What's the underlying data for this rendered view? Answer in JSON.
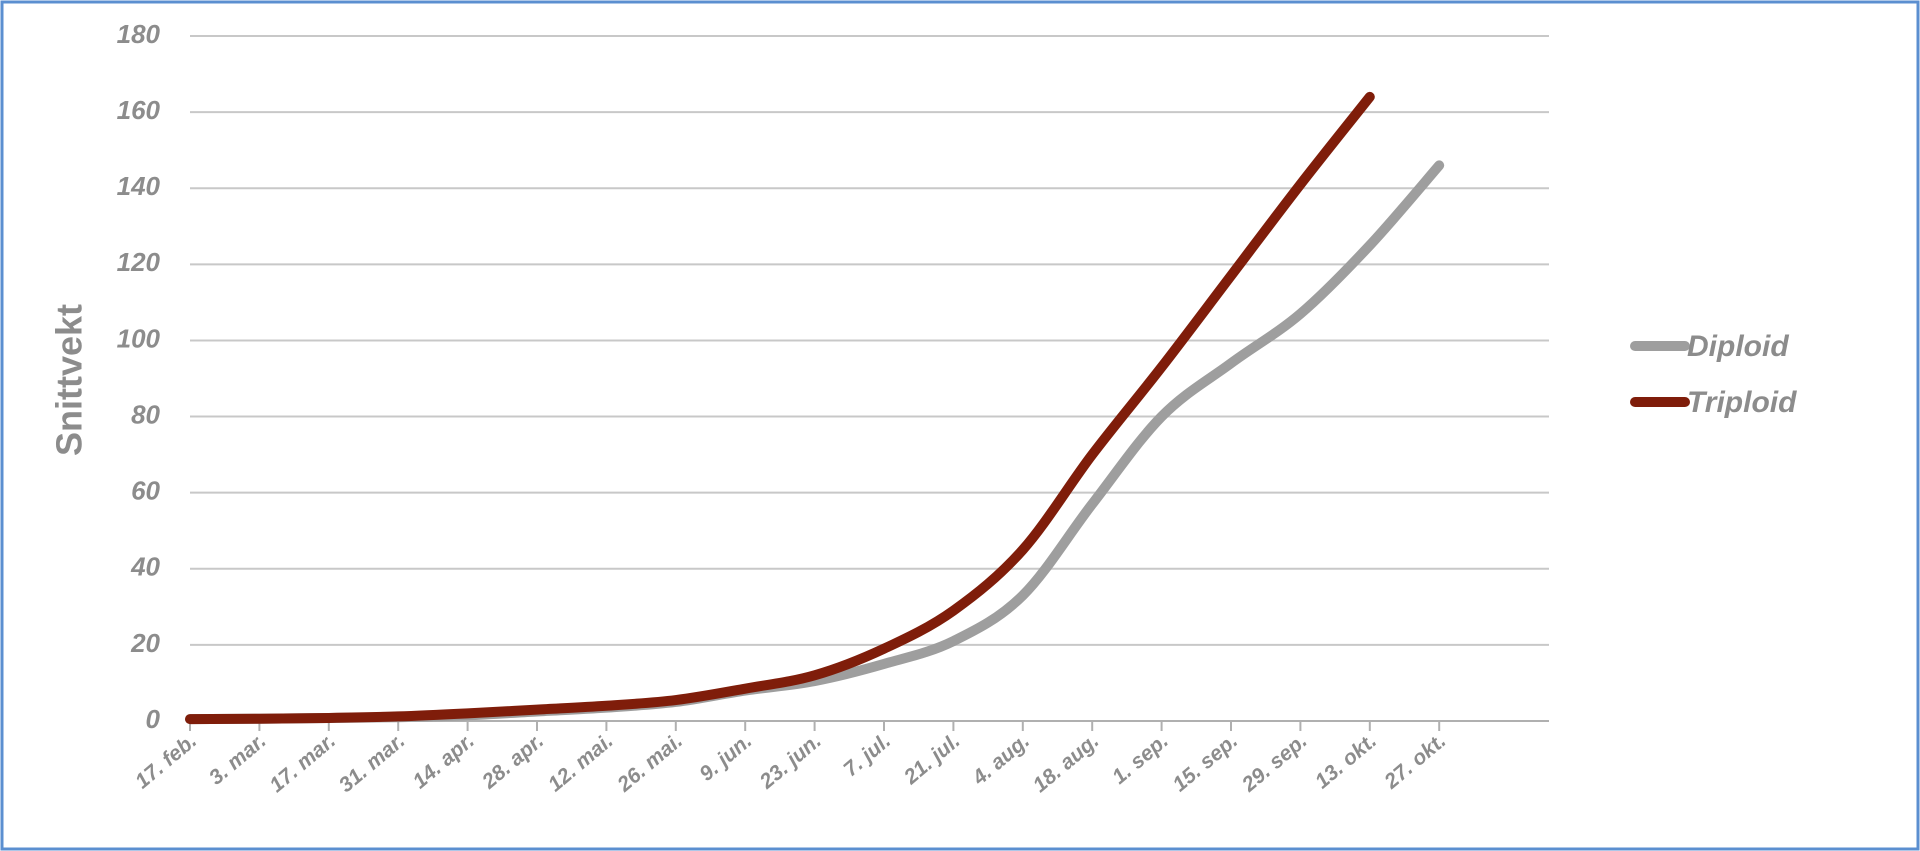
{
  "chart_data": {
    "type": "line",
    "y_label": "Snittvekt",
    "categories": [
      "17. feb.",
      "3. mar.",
      "17. mar.",
      "31. mar.",
      "14. apr.",
      "28. apr.",
      "12. mai.",
      "26. mai.",
      "9. jun.",
      "23. jun.",
      "7. jul.",
      "21. jul.",
      "4. aug.",
      "18. aug.",
      "1. sep.",
      "15. sep.",
      "29. sep.",
      "13. okt.",
      "27. okt."
    ],
    "series": [
      {
        "name": "Diploid",
        "color": "#9e9e9e",
        "values": [
          0.5,
          0.6,
          0.8,
          1,
          1.5,
          2.5,
          3.5,
          5,
          8,
          10.5,
          15,
          21,
          33,
          57,
          80,
          94,
          107,
          125,
          146
        ]
      },
      {
        "name": "Triploid",
        "color": "#7f1d0a",
        "values": [
          0.5,
          0.6,
          0.8,
          1.2,
          2,
          3,
          4,
          5.5,
          8.5,
          12,
          19,
          29,
          45,
          70,
          93,
          117,
          141,
          164,
          null
        ]
      }
    ],
    "ylim": [
      0,
      180
    ],
    "yticks": [
      0,
      20,
      40,
      60,
      80,
      100,
      120,
      140,
      160,
      180
    ],
    "grid": true,
    "legend": "right"
  }
}
